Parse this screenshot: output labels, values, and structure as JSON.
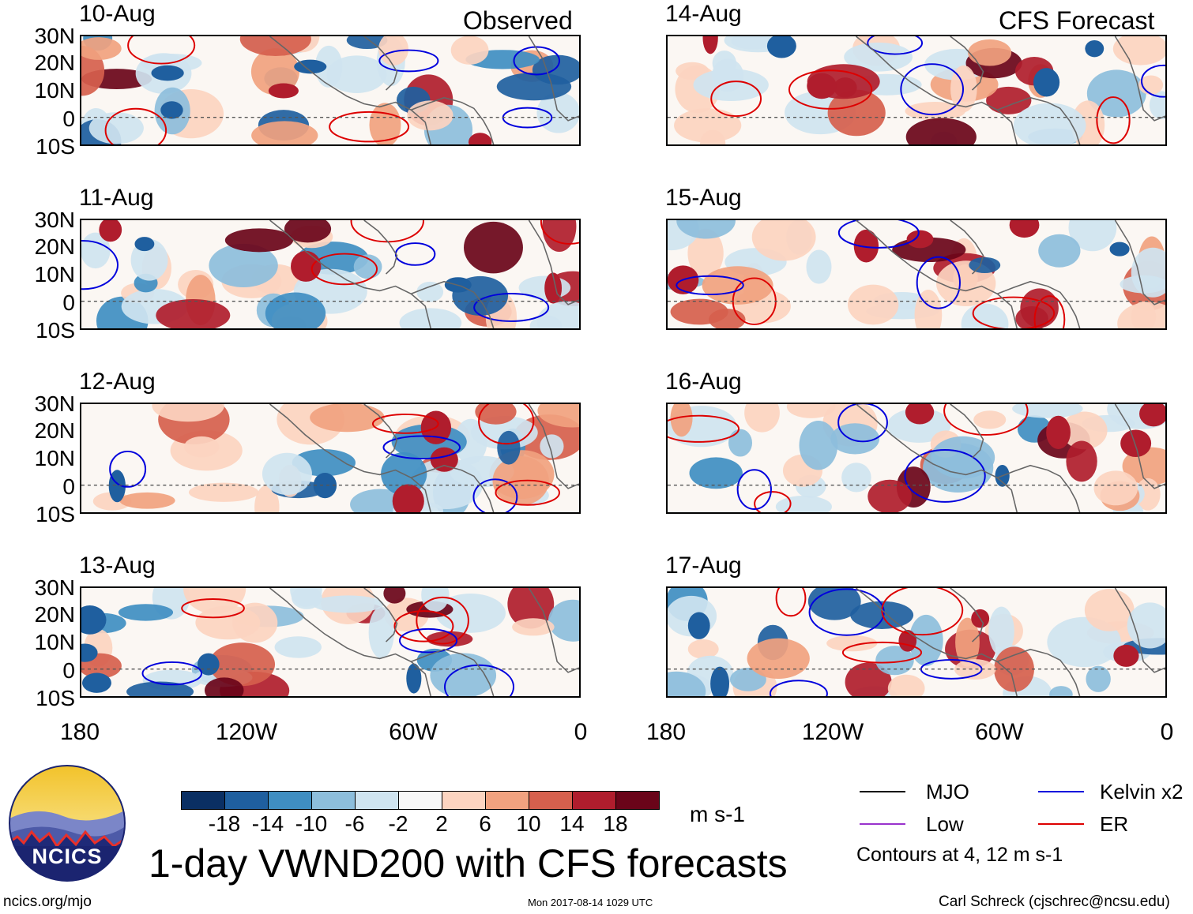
{
  "headers": {
    "observed": "Observed",
    "forecast": "CFS Forecast"
  },
  "panels_observed": [
    {
      "date": "10-Aug"
    },
    {
      "date": "11-Aug"
    },
    {
      "date": "12-Aug"
    },
    {
      "date": "13-Aug"
    }
  ],
  "panels_forecast": [
    {
      "date": "14-Aug"
    },
    {
      "date": "15-Aug"
    },
    {
      "date": "16-Aug"
    },
    {
      "date": "17-Aug"
    }
  ],
  "lat_labels": [
    "30N",
    "20N",
    "10N",
    "0",
    "10S"
  ],
  "lon_labels": [
    "180",
    "120W",
    "60W",
    "0"
  ],
  "colorbar": {
    "colors": [
      "#0a2f63",
      "#1f5f9f",
      "#3f8ec2",
      "#8dbedc",
      "#cfe4f0",
      "#f7f7f7",
      "#fcd4c0",
      "#f1a27f",
      "#d6604d",
      "#b01d2d",
      "#6a0419"
    ],
    "ticks": [
      "-18",
      "-14",
      "-10",
      "-6",
      "-2",
      "2",
      "6",
      "10",
      "14",
      "18"
    ],
    "unit": "m s-1"
  },
  "title": "1-day VWND200 with CFS forecasts",
  "logo_text": "NCICS",
  "legend": {
    "items": [
      {
        "label": "MJO",
        "color": "#000000"
      },
      {
        "label": "Kelvin x2",
        "color": "#0000dd"
      },
      {
        "label": "Low",
        "color": "#9933cc"
      },
      {
        "label": "ER",
        "color": "#dd0000"
      }
    ],
    "note": "Contours at 4, 12 m s-1"
  },
  "footer": {
    "left": "ncics.org/mjo",
    "center": "Mon 2017-08-14 1029 UTC",
    "right": "Carl Schreck (cjschrec@ncsu.edu)"
  }
}
